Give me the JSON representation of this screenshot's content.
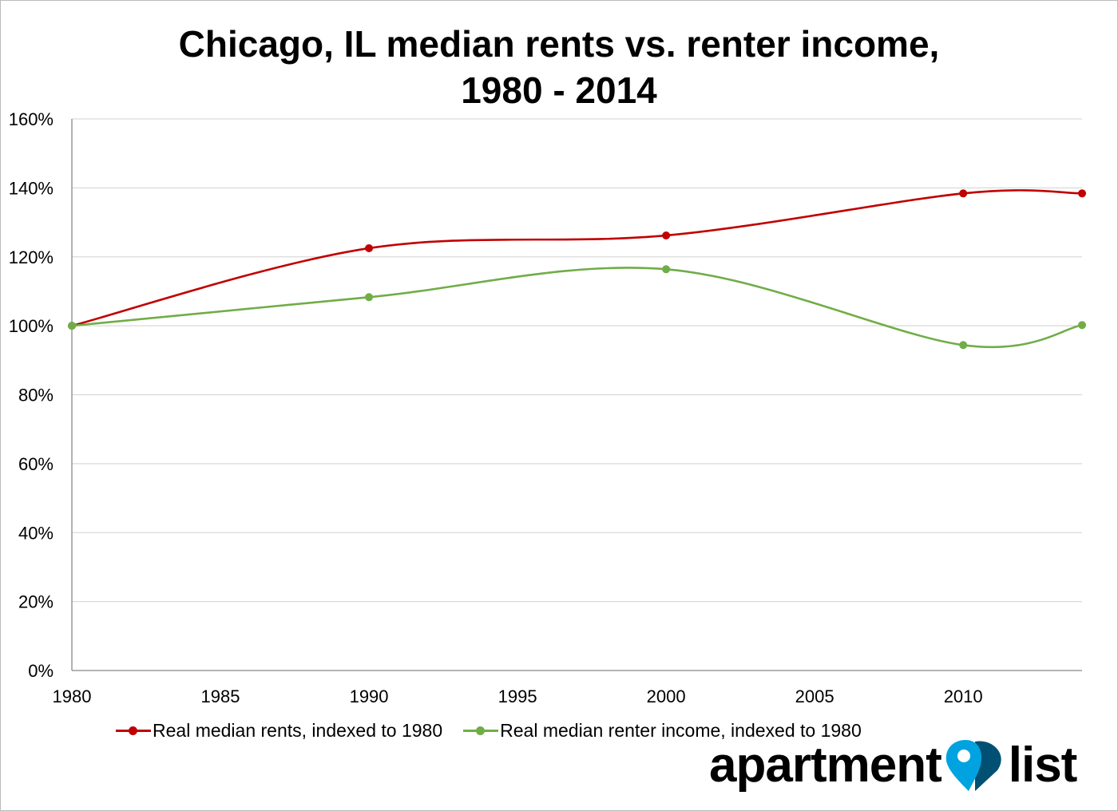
{
  "chart_data": {
    "type": "line",
    "title_line1": "Chicago, IL median rents vs. renter income,",
    "title_line2": "1980 - 2014",
    "xlabel": "",
    "ylabel": "",
    "x": [
      1980,
      1990,
      2000,
      2010,
      2014
    ],
    "xlim": [
      1980,
      2014
    ],
    "ylim": [
      0,
      160
    ],
    "x_ticks": [
      "1980",
      "1985",
      "1990",
      "1995",
      "2000",
      "2005",
      "2010"
    ],
    "y_ticks": [
      "0%",
      "20%",
      "40%",
      "60%",
      "80%",
      "100%",
      "120%",
      "140%",
      "160%"
    ],
    "grid": true,
    "smoothed": true,
    "legend_position": "bottom",
    "series": [
      {
        "name": "Real median rents, indexed to 1980",
        "color": "#c00000",
        "values": [
          100,
          122.5,
          126.2,
          138.4,
          138.4
        ]
      },
      {
        "name": "Real median renter income, indexed to 1980",
        "color": "#70ad47",
        "values": [
          100,
          108.3,
          116.4,
          94.4,
          100.2
        ]
      }
    ]
  },
  "logo": {
    "text_left": "apartment",
    "text_right": "list",
    "pin_color": "#00a3e0",
    "dark_color": "#005073"
  }
}
